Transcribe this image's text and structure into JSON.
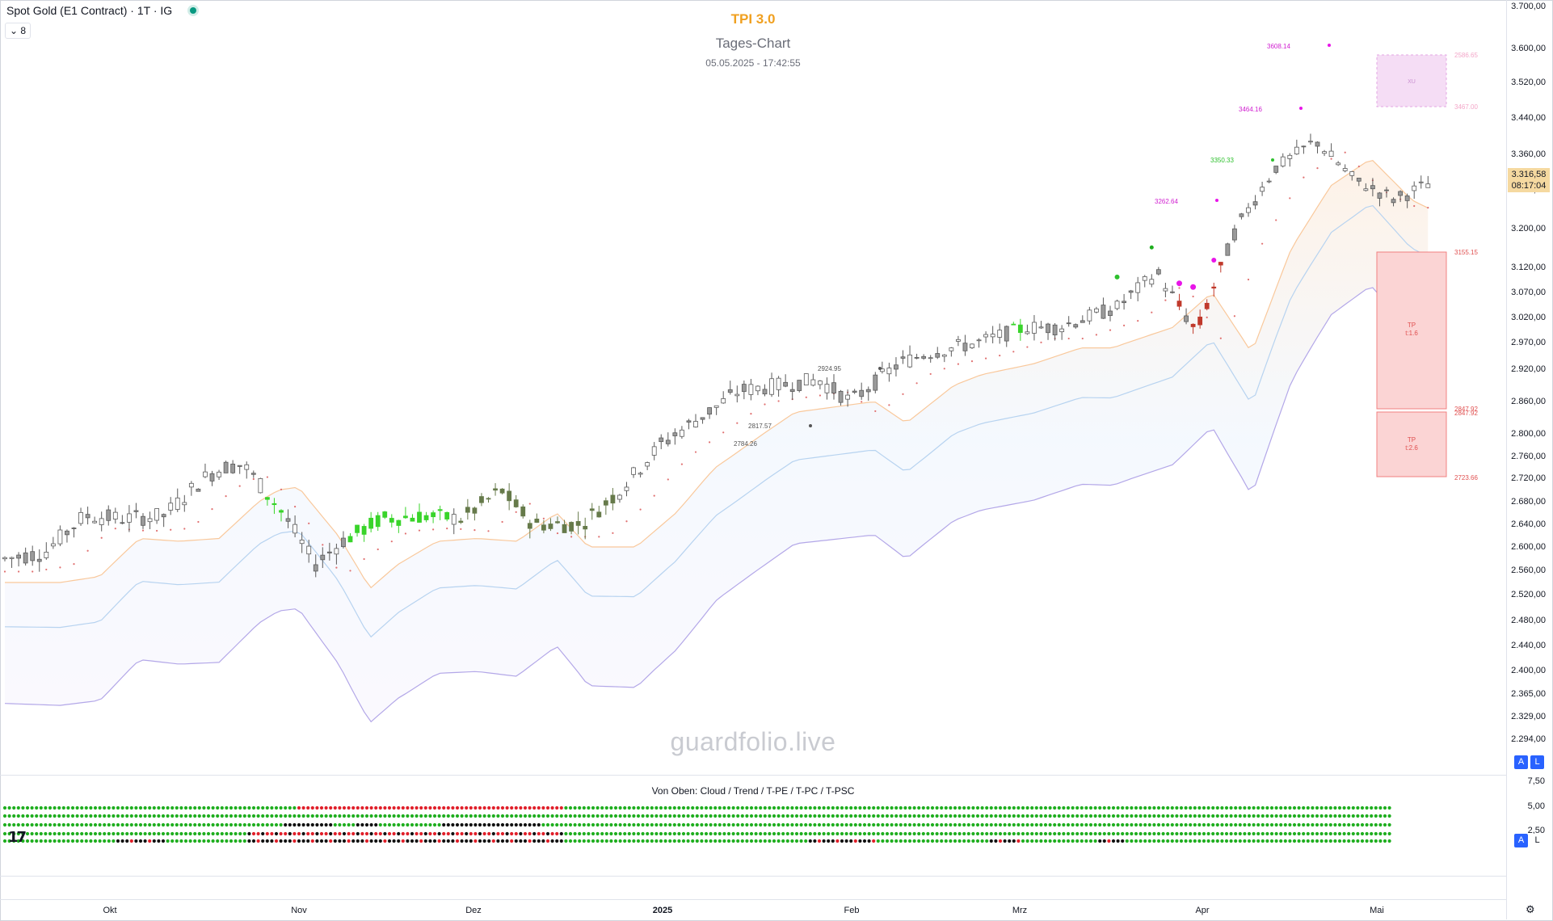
{
  "header": {
    "symbol": "Spot Gold (E1 Contract) · 1T · IG",
    "collapse_label": "⌄ 8"
  },
  "overlay": {
    "title": "TPI 3.0",
    "subtitle": "Tages-Chart",
    "timestamp": "05.05.2025 - 17:42:55",
    "watermark": "guardfolio.live"
  },
  "price_axis": {
    "ticks": [
      "3.700,00",
      "3.600,00",
      "3.520,00",
      "3.440,00",
      "3.360,00",
      "3.280,00",
      "3.200,00",
      "3.120,00",
      "3.070,00",
      "3.020,00",
      "2.970,00",
      "2.920,00",
      "2.860,00",
      "2.800,00",
      "2.760,00",
      "2.720,00",
      "2.680,00",
      "2.640,00",
      "2.600,00",
      "2.560,00",
      "2.520,00",
      "2.480,00",
      "2.440,00",
      "2.400,00",
      "2.365,00",
      "2.329,00",
      "2.294,00"
    ],
    "last_price": "3.316,58",
    "countdown": "08:17:04",
    "auto_label": "A",
    "log_label": "L"
  },
  "indicator": {
    "title": "Von Oben: Cloud / Trend / T-PE / T-PC / T-PSC",
    "ticks": [
      "7,50",
      "5,00",
      "2,50"
    ],
    "auto_label": "A",
    "log_label": "L",
    "logo": "17"
  },
  "time_axis": {
    "labels": [
      "Okt",
      "Nov",
      "Dez",
      "2025",
      "Feb",
      "Mrz",
      "Apr",
      "Mai"
    ]
  },
  "annotations": {
    "levels": [
      "3608.14",
      "3464.16",
      "3350.33",
      "3262.64",
      "2924.95",
      "2817.57",
      "2784.26"
    ],
    "box_top": [
      "2586.65",
      "3467.00"
    ],
    "box_mid": "XU",
    "tp1": "TP\nt:1.6",
    "tp2": "TP\nt:2.6",
    "tp_levels": [
      "3155.15",
      "2847.92",
      "2847.92",
      "2723.66"
    ]
  },
  "colors": {
    "bull": "#39d42a",
    "bear_dark": "#667a4a",
    "bear_red": "#c0392b",
    "magenta": "#e815e8",
    "ema_orange": "#f9c89b",
    "ema_blue": "#b7d3f0",
    "ema_purple": "#b3a7e8",
    "dot_green": "#1fae1f",
    "dot_red": "#e0202a",
    "dot_black": "#111111",
    "title_orange": "#f0a020"
  }
}
